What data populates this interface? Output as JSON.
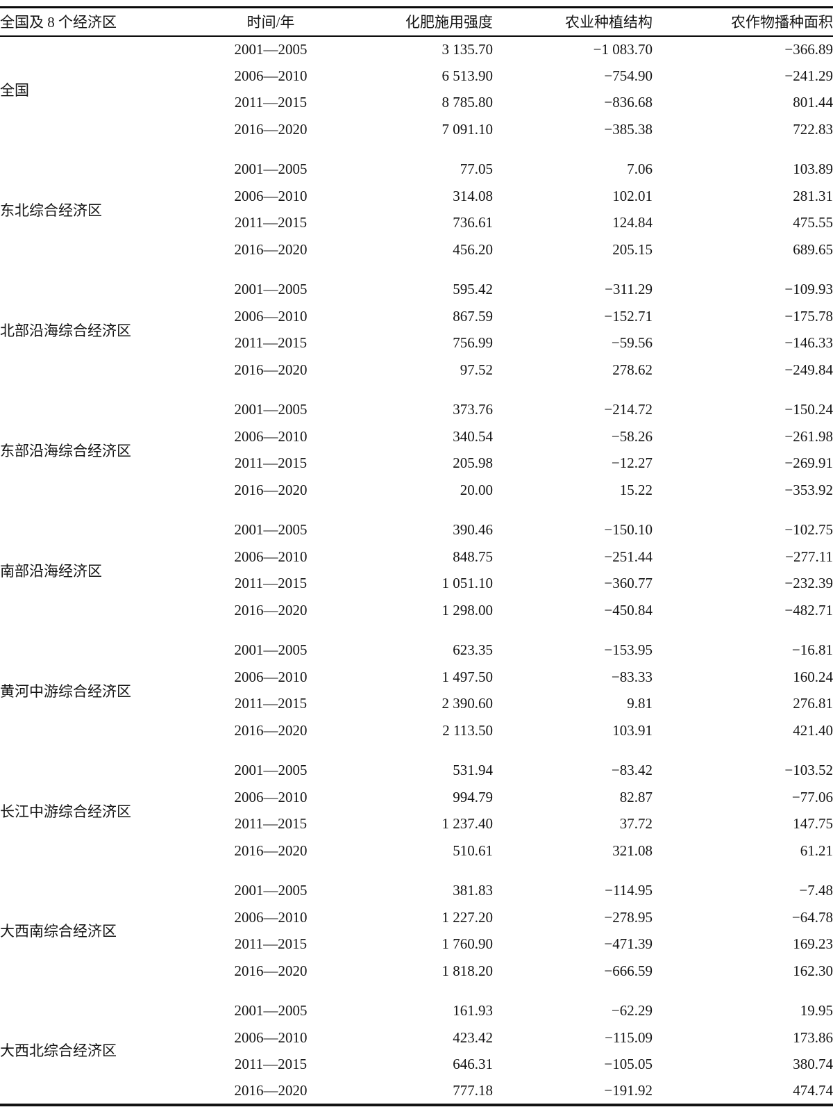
{
  "table": {
    "headers": {
      "region": "全国及 8 个经济区",
      "period": "时间/年",
      "fertilizer": "化肥施用强度",
      "structure": "农业种植结构",
      "area": "农作物播种面积"
    },
    "groups": [
      {
        "region": "全国",
        "rows": [
          {
            "period": "2001—2005",
            "fertilizer": "3 135.70",
            "structure": "−1 083.70",
            "area": "−366.89"
          },
          {
            "period": "2006—2010",
            "fertilizer": "6 513.90",
            "structure": "−754.90",
            "area": "−241.29"
          },
          {
            "period": "2011—2015",
            "fertilizer": "8 785.80",
            "structure": "−836.68",
            "area": "801.44"
          },
          {
            "period": "2016—2020",
            "fertilizer": "7 091.10",
            "structure": "−385.38",
            "area": "722.83"
          }
        ]
      },
      {
        "region": "东北综合经济区",
        "rows": [
          {
            "period": "2001—2005",
            "fertilizer": "77.05",
            "structure": "7.06",
            "area": "103.89"
          },
          {
            "period": "2006—2010",
            "fertilizer": "314.08",
            "structure": "102.01",
            "area": "281.31"
          },
          {
            "period": "2011—2015",
            "fertilizer": "736.61",
            "structure": "124.84",
            "area": "475.55"
          },
          {
            "period": "2016—2020",
            "fertilizer": "456.20",
            "structure": "205.15",
            "area": "689.65"
          }
        ]
      },
      {
        "region": "北部沿海综合经济区",
        "rows": [
          {
            "period": "2001—2005",
            "fertilizer": "595.42",
            "structure": "−311.29",
            "area": "−109.93"
          },
          {
            "period": "2006—2010",
            "fertilizer": "867.59",
            "structure": "−152.71",
            "area": "−175.78"
          },
          {
            "period": "2011—2015",
            "fertilizer": "756.99",
            "structure": "−59.56",
            "area": "−146.33"
          },
          {
            "period": "2016—2020",
            "fertilizer": "97.52",
            "structure": "278.62",
            "area": "−249.84"
          }
        ]
      },
      {
        "region": "东部沿海综合经济区",
        "rows": [
          {
            "period": "2001—2005",
            "fertilizer": "373.76",
            "structure": "−214.72",
            "area": "−150.24"
          },
          {
            "period": "2006—2010",
            "fertilizer": "340.54",
            "structure": "−58.26",
            "area": "−261.98"
          },
          {
            "period": "2011—2015",
            "fertilizer": "205.98",
            "structure": "−12.27",
            "area": "−269.91"
          },
          {
            "period": "2016—2020",
            "fertilizer": "20.00",
            "structure": "15.22",
            "area": "−353.92"
          }
        ]
      },
      {
        "region": "南部沿海经济区",
        "rows": [
          {
            "period": "2001—2005",
            "fertilizer": "390.46",
            "structure": "−150.10",
            "area": "−102.75"
          },
          {
            "period": "2006—2010",
            "fertilizer": "848.75",
            "structure": "−251.44",
            "area": "−277.11"
          },
          {
            "period": "2011—2015",
            "fertilizer": "1 051.10",
            "structure": "−360.77",
            "area": "−232.39"
          },
          {
            "period": "2016—2020",
            "fertilizer": "1 298.00",
            "structure": "−450.84",
            "area": "−482.71"
          }
        ]
      },
      {
        "region": "黄河中游综合经济区",
        "rows": [
          {
            "period": "2001—2005",
            "fertilizer": "623.35",
            "structure": "−153.95",
            "area": "−16.81"
          },
          {
            "period": "2006—2010",
            "fertilizer": "1 497.50",
            "structure": "−83.33",
            "area": "160.24"
          },
          {
            "period": "2011—2015",
            "fertilizer": "2 390.60",
            "structure": "9.81",
            "area": "276.81"
          },
          {
            "period": "2016—2020",
            "fertilizer": "2 113.50",
            "structure": "103.91",
            "area": "421.40"
          }
        ]
      },
      {
        "region": "长江中游综合经济区",
        "rows": [
          {
            "period": "2001—2005",
            "fertilizer": "531.94",
            "structure": "−83.42",
            "area": "−103.52"
          },
          {
            "period": "2006—2010",
            "fertilizer": "994.79",
            "structure": "82.87",
            "area": "−77.06"
          },
          {
            "period": "2011—2015",
            "fertilizer": "1 237.40",
            "structure": "37.72",
            "area": "147.75"
          },
          {
            "period": "2016—2020",
            "fertilizer": "510.61",
            "structure": "321.08",
            "area": "61.21"
          }
        ]
      },
      {
        "region": "大西南综合经济区",
        "rows": [
          {
            "period": "2001—2005",
            "fertilizer": "381.83",
            "structure": "−114.95",
            "area": "−7.48"
          },
          {
            "period": "2006—2010",
            "fertilizer": "1 227.20",
            "structure": "−278.95",
            "area": "−64.78"
          },
          {
            "period": "2011—2015",
            "fertilizer": "1 760.90",
            "structure": "−471.39",
            "area": "169.23"
          },
          {
            "period": "2016—2020",
            "fertilizer": "1 818.20",
            "structure": "−666.59",
            "area": "162.30"
          }
        ]
      },
      {
        "region": "大西北综合经济区",
        "rows": [
          {
            "period": "2001—2005",
            "fertilizer": "161.93",
            "structure": "−62.29",
            "area": "19.95"
          },
          {
            "period": "2006—2010",
            "fertilizer": "423.42",
            "structure": "−115.09",
            "area": "173.86"
          },
          {
            "period": "2011—2015",
            "fertilizer": "646.31",
            "structure": "−105.05",
            "area": "380.74"
          },
          {
            "period": "2016—2020",
            "fertilizer": "777.18",
            "structure": "−191.92",
            "area": "474.74"
          }
        ]
      }
    ]
  }
}
